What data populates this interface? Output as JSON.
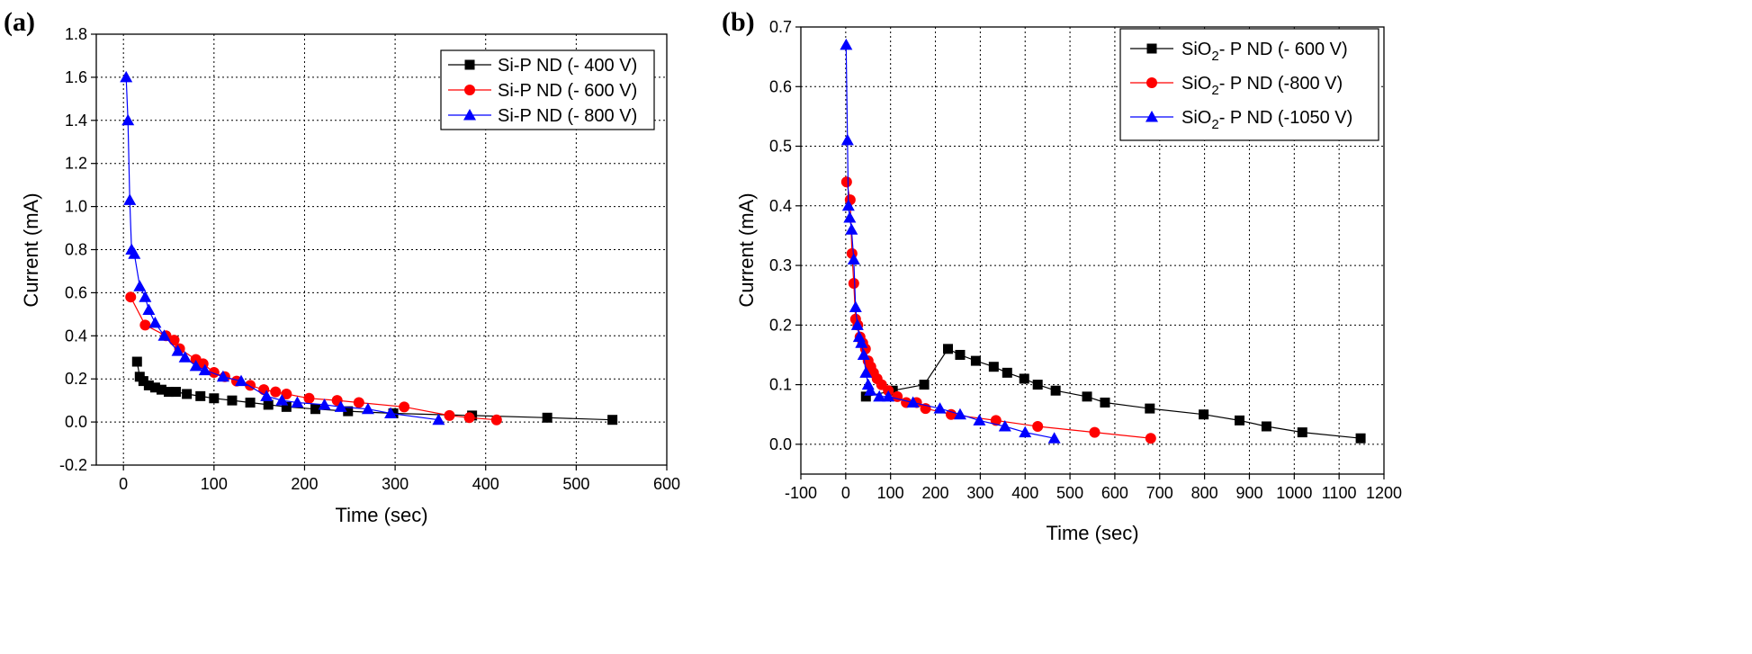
{
  "chart_data": [
    {
      "panel_label": "(a)",
      "type": "line",
      "xlabel": "Time (sec)",
      "ylabel": "Current (mA)",
      "xlim": [
        -30,
        600
      ],
      "ylim": [
        -0.2,
        1.8
      ],
      "xticks": [
        "0",
        "100",
        "200",
        "300",
        "400",
        "500",
        "600"
      ],
      "yticks": [
        "-0.2",
        "0.0",
        "0.2",
        "0.4",
        "0.6",
        "0.8",
        "1.0",
        "1.2",
        "1.4",
        "1.6",
        "1.8"
      ],
      "grid": true,
      "legend_position": "top-right",
      "series": [
        {
          "name": "Si-P  ND (- 400 V)",
          "marker": "square",
          "color": "#000000",
          "points": [
            [
              15,
              0.28
            ],
            [
              18,
              0.21
            ],
            [
              22,
              0.19
            ],
            [
              28,
              0.17
            ],
            [
              35,
              0.16
            ],
            [
              42,
              0.15
            ],
            [
              50,
              0.14
            ],
            [
              58,
              0.14
            ],
            [
              70,
              0.13
            ],
            [
              85,
              0.12
            ],
            [
              100,
              0.11
            ],
            [
              120,
              0.1
            ],
            [
              140,
              0.09
            ],
            [
              160,
              0.08
            ],
            [
              180,
              0.07
            ],
            [
              212,
              0.06
            ],
            [
              248,
              0.05
            ],
            [
              298,
              0.04
            ],
            [
              385,
              0.03
            ],
            [
              468,
              0.02
            ],
            [
              540,
              0.01
            ]
          ]
        },
        {
          "name": "Si-P  ND (- 600 V)",
          "marker": "circle",
          "color": "#ff0000",
          "points": [
            [
              8,
              0.58
            ],
            [
              24,
              0.45
            ],
            [
              47,
              0.4
            ],
            [
              56,
              0.38
            ],
            [
              62,
              0.34
            ],
            [
              80,
              0.29
            ],
            [
              88,
              0.27
            ],
            [
              100,
              0.23
            ],
            [
              112,
              0.21
            ],
            [
              125,
              0.19
            ],
            [
              140,
              0.17
            ],
            [
              155,
              0.15
            ],
            [
              168,
              0.14
            ],
            [
              180,
              0.13
            ],
            [
              205,
              0.11
            ],
            [
              236,
              0.1
            ],
            [
              260,
              0.09
            ],
            [
              310,
              0.07
            ],
            [
              360,
              0.03
            ],
            [
              382,
              0.02
            ],
            [
              412,
              0.01
            ]
          ]
        },
        {
          "name": "Si-P  ND (- 800 V)",
          "marker": "triangle",
          "color": "#0000ff",
          "points": [
            [
              3,
              1.6
            ],
            [
              5,
              1.4
            ],
            [
              7,
              1.03
            ],
            [
              9,
              0.8
            ],
            [
              12,
              0.78
            ],
            [
              18,
              0.63
            ],
            [
              24,
              0.58
            ],
            [
              28,
              0.52
            ],
            [
              35,
              0.46
            ],
            [
              45,
              0.4
            ],
            [
              60,
              0.33
            ],
            [
              68,
              0.3
            ],
            [
              80,
              0.26
            ],
            [
              90,
              0.24
            ],
            [
              110,
              0.21
            ],
            [
              130,
              0.19
            ],
            [
              158,
              0.12
            ],
            [
              175,
              0.1
            ],
            [
              192,
              0.09
            ],
            [
              222,
              0.08
            ],
            [
              240,
              0.07
            ],
            [
              270,
              0.06
            ],
            [
              295,
              0.04
            ],
            [
              348,
              0.01
            ]
          ]
        }
      ]
    },
    {
      "panel_label": "(b)",
      "type": "line",
      "xlabel": "Time (sec)",
      "ylabel": "Current (mA)",
      "xlim": [
        -100,
        1200
      ],
      "ylim": [
        -0.05,
        0.7
      ],
      "xticks": [
        "-100",
        "0",
        "100",
        "200",
        "300",
        "400",
        "500",
        "600",
        "700",
        "800",
        "900",
        "1000",
        "1100",
        "1200"
      ],
      "yticks": [
        "0.0",
        "0.1",
        "0.2",
        "0.3",
        "0.4",
        "0.5",
        "0.6",
        "0.7"
      ],
      "grid": true,
      "legend_position": "top-right",
      "series": [
        {
          "name": "SiO2- P  ND (- 600 V)",
          "name_main": "SiO",
          "name_sub": "2",
          "name_rest": "- P  ND (- 600 V)",
          "marker": "square",
          "color": "#000000",
          "points": [
            [
              45,
              0.08
            ],
            [
              105,
              0.09
            ],
            [
              175,
              0.1
            ],
            [
              228,
              0.16
            ],
            [
              255,
              0.15
            ],
            [
              290,
              0.14
            ],
            [
              330,
              0.13
            ],
            [
              360,
              0.12
            ],
            [
              398,
              0.11
            ],
            [
              428,
              0.1
            ],
            [
              468,
              0.09
            ],
            [
              538,
              0.08
            ],
            [
              578,
              0.07
            ],
            [
              678,
              0.06
            ],
            [
              798,
              0.05
            ],
            [
              878,
              0.04
            ],
            [
              938,
              0.03
            ],
            [
              1018,
              0.02
            ],
            [
              1148,
              0.01
            ]
          ]
        },
        {
          "name": "SiO2- P  ND (-800 V)",
          "name_main": "SiO",
          "name_sub": "2",
          "name_rest": "- P  ND (-800 V)",
          "marker": "circle",
          "color": "#ff0000",
          "points": [
            [
              2,
              0.44
            ],
            [
              10,
              0.41
            ],
            [
              14,
              0.32
            ],
            [
              18,
              0.27
            ],
            [
              22,
              0.21
            ],
            [
              27,
              0.2
            ],
            [
              32,
              0.18
            ],
            [
              38,
              0.17
            ],
            [
              44,
              0.16
            ],
            [
              50,
              0.14
            ],
            [
              56,
              0.13
            ],
            [
              62,
              0.12
            ],
            [
              70,
              0.11
            ],
            [
              80,
              0.1
            ],
            [
              95,
              0.09
            ],
            [
              115,
              0.08
            ],
            [
              135,
              0.07
            ],
            [
              158,
              0.07
            ],
            [
              178,
              0.06
            ],
            [
              235,
              0.05
            ],
            [
              335,
              0.04
            ],
            [
              428,
              0.03
            ],
            [
              555,
              0.02
            ],
            [
              680,
              0.01
            ]
          ]
        },
        {
          "name": "SiO2- P  ND (-1050 V)",
          "name_main": "SiO",
          "name_sub": "2",
          "name_rest": "- P  ND (-1050 V)",
          "marker": "triangle",
          "color": "#0000ff",
          "points": [
            [
              1,
              0.67
            ],
            [
              4,
              0.51
            ],
            [
              6,
              0.4
            ],
            [
              9,
              0.38
            ],
            [
              13,
              0.36
            ],
            [
              18,
              0.31
            ],
            [
              22,
              0.23
            ],
            [
              26,
              0.2
            ],
            [
              30,
              0.18
            ],
            [
              35,
              0.17
            ],
            [
              40,
              0.15
            ],
            [
              45,
              0.12
            ],
            [
              50,
              0.1
            ],
            [
              55,
              0.09
            ],
            [
              75,
              0.08
            ],
            [
              95,
              0.08
            ],
            [
              150,
              0.07
            ],
            [
              210,
              0.06
            ],
            [
              255,
              0.05
            ],
            [
              298,
              0.04
            ],
            [
              355,
              0.03
            ],
            [
              400,
              0.02
            ],
            [
              465,
              0.01
            ]
          ]
        }
      ]
    }
  ]
}
